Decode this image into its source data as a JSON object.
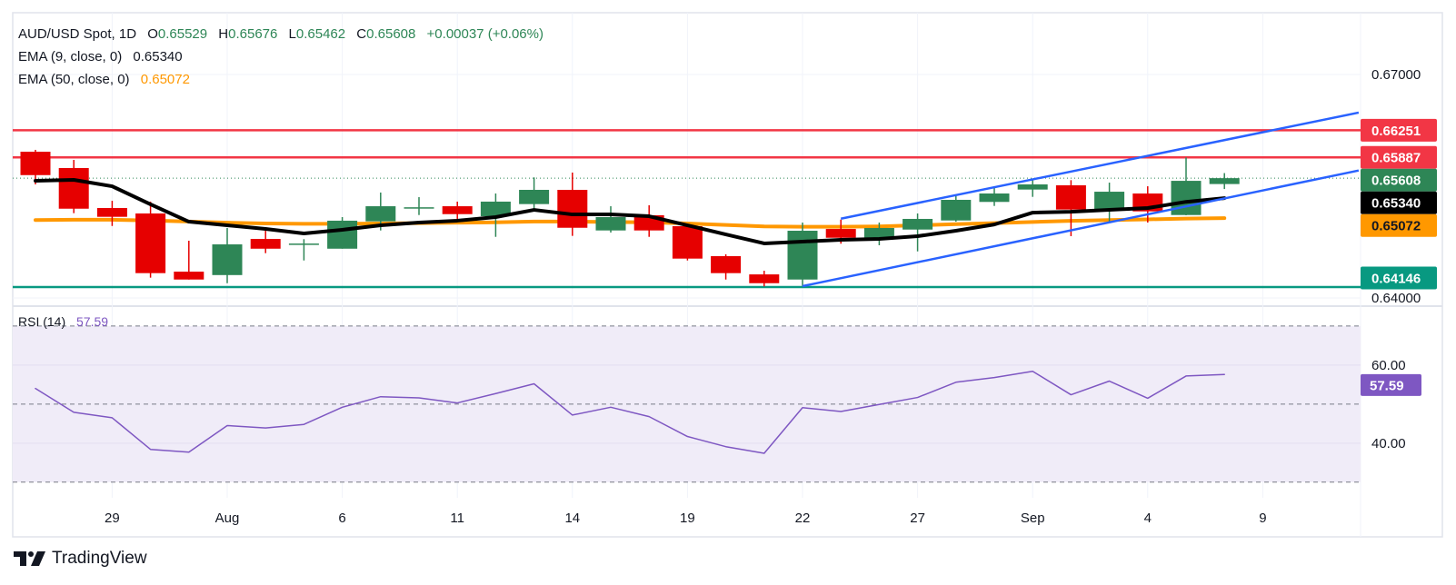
{
  "header": {
    "symbol": "AUD/USD Spot, 1D",
    "open_label": "O",
    "open": "0.65529",
    "high_label": "H",
    "high": "0.65676",
    "low_label": "L",
    "low": "0.65462",
    "close_label": "C",
    "close": "0.65608",
    "change": "+0.00037 (+0.06%)",
    "ema9_label": "EMA (9, close, 0)",
    "ema9_value": "0.65340",
    "ema50_label": "EMA (50, close, 0)",
    "ema50_value": "0.65072",
    "rsi_label": "RSI (14)",
    "rsi_value": "57.59"
  },
  "branding": {
    "name": "TradingView"
  },
  "colors": {
    "up": "#2e8656",
    "down": "#e60000",
    "ema9": "#000000",
    "ema50": "#ff9800",
    "resistance": "#f23645",
    "support": "#089981",
    "channel": "#2962ff",
    "rsi": "#7e57c2",
    "rsi_band": "#f0ecf8",
    "grid": "#f0f3fa"
  },
  "chart_data": {
    "type": "candlestick",
    "x_unit": "bar index",
    "x_ticks": [
      {
        "label": "29",
        "bar": 2
      },
      {
        "label": "Aug",
        "bar": 5
      },
      {
        "label": "6",
        "bar": 8
      },
      {
        "label": "11",
        "bar": 11
      },
      {
        "label": "14",
        "bar": 14
      },
      {
        "label": "19",
        "bar": 17
      },
      {
        "label": "22",
        "bar": 20
      },
      {
        "label": "27",
        "bar": 23
      },
      {
        "label": "Sep",
        "bar": 26
      },
      {
        "label": "4",
        "bar": 29
      },
      {
        "label": "9",
        "bar": 32
      }
    ],
    "price_ticks": [
      "0.67000",
      "0.64000"
    ],
    "price_range": [
      0.6389,
      0.67829
    ],
    "candles_ohlc": [
      [
        0.65963,
        0.65988,
        0.65524,
        0.65649
      ],
      [
        0.65744,
        0.65853,
        0.65138,
        0.65198
      ],
      [
        0.65207,
        0.65304,
        0.64966,
        0.65089
      ],
      [
        0.65134,
        0.65293,
        0.64272,
        0.64333
      ],
      [
        0.64353,
        0.64768,
        0.64247,
        0.64247
      ],
      [
        0.64307,
        0.64939,
        0.64198,
        0.64719
      ],
      [
        0.64792,
        0.64902,
        0.64601,
        0.64661
      ],
      [
        0.64725,
        0.64789,
        0.64503,
        0.6473
      ],
      [
        0.64661,
        0.65085,
        0.64661,
        0.65037
      ],
      [
        0.65028,
        0.65415,
        0.64906,
        0.65231
      ],
      [
        0.6521,
        0.65353,
        0.65113,
        0.65217
      ],
      [
        0.65231,
        0.65293,
        0.65021,
        0.65125
      ],
      [
        0.65097,
        0.65402,
        0.6482,
        0.65293
      ],
      [
        0.6526,
        0.65618,
        0.65174,
        0.65451
      ],
      [
        0.65451,
        0.65683,
        0.64833,
        0.64942
      ],
      [
        0.64906,
        0.65231,
        0.64878,
        0.65085
      ],
      [
        0.6511,
        0.65244,
        0.6482,
        0.64906
      ],
      [
        0.64963,
        0.64968,
        0.64503,
        0.64528
      ],
      [
        0.64561,
        0.64585,
        0.64247,
        0.64333
      ],
      [
        0.64316,
        0.64365,
        0.64155,
        0.64198
      ],
      [
        0.64247,
        0.65012,
        0.64161,
        0.64902
      ],
      [
        0.64926,
        0.65052,
        0.64728,
        0.64808
      ],
      [
        0.64796,
        0.65012,
        0.64707,
        0.64939
      ],
      [
        0.64918,
        0.65134,
        0.64625,
        0.65061
      ],
      [
        0.6504,
        0.65366,
        0.65024,
        0.65317
      ],
      [
        0.65289,
        0.65488,
        0.65235,
        0.65402
      ],
      [
        0.65455,
        0.65601,
        0.65357,
        0.65524
      ],
      [
        0.65512,
        0.65581,
        0.64829,
        0.65187
      ],
      [
        0.65194,
        0.65548,
        0.65024,
        0.65426
      ],
      [
        0.65402,
        0.65499,
        0.65012,
        0.65162
      ],
      [
        0.65113,
        0.65886,
        0.6511,
        0.65572
      ],
      [
        0.65529,
        0.65676,
        0.65462,
        0.65608
      ]
    ],
    "ema9": [
      0.65573,
      0.65585,
      0.65499,
      0.65256,
      0.65024,
      0.64975,
      0.64926,
      0.64866,
      0.64915,
      0.64975,
      0.65012,
      0.65037,
      0.65085,
      0.65182,
      0.65121,
      0.65121,
      0.65097,
      0.64975,
      0.64853,
      0.64732,
      0.64756,
      0.6478,
      0.64792,
      0.64829,
      0.64902,
      0.64986,
      0.65145,
      0.65157,
      0.65182,
      0.65207,
      0.6529,
      0.6534
    ],
    "ema50": [
      0.65045,
      0.6505,
      0.6505,
      0.6504,
      0.65025,
      0.6501,
      0.65,
      0.64995,
      0.64995,
      0.65,
      0.65005,
      0.6501,
      0.65015,
      0.65025,
      0.65025,
      0.6502,
      0.65015,
      0.65,
      0.6498,
      0.6496,
      0.64955,
      0.64955,
      0.6496,
      0.64975,
      0.6499,
      0.65005,
      0.6502,
      0.65035,
      0.65045,
      0.65055,
      0.65065,
      0.65072
    ],
    "horizontal_lines": [
      {
        "value": 0.66251,
        "label": "0.66251",
        "kind": "resistance"
      },
      {
        "value": 0.65887,
        "label": "0.65887",
        "kind": "resistance"
      },
      {
        "value": 0.64146,
        "label": "0.64146",
        "kind": "support"
      }
    ],
    "last_price_line": {
      "value": 0.65608,
      "style": "dotted"
    },
    "channel": [
      {
        "start": [
          21.0,
          0.65064
        ],
        "end": [
          34.5,
          0.66488
        ]
      },
      {
        "start": [
          20.0,
          0.64158
        ],
        "end": [
          34.5,
          0.65711
        ]
      }
    ],
    "price_labels": [
      {
        "value": 0.66251,
        "label": "0.66251",
        "kind": "resistance"
      },
      {
        "value": 0.65887,
        "label": "0.65887",
        "kind": "resistance"
      },
      {
        "value": 0.65608,
        "label": "0.65608",
        "kind": "up"
      },
      {
        "value": 0.6534,
        "label": "0.65340",
        "kind": "ema9"
      },
      {
        "value": 0.65072,
        "label": "0.65072",
        "kind": "ema50"
      },
      {
        "value": 0.64146,
        "label": "0.64146",
        "kind": "support"
      }
    ],
    "rsi": {
      "period": 14,
      "values": [
        54.0,
        47.9,
        46.5,
        38.4,
        37.7,
        44.5,
        43.9,
        44.8,
        49.2,
        51.9,
        51.6,
        50.3,
        52.7,
        55.2,
        47.2,
        49.2,
        46.8,
        41.7,
        39.1,
        37.4,
        49.1,
        48.1,
        49.9,
        51.7,
        55.6,
        56.8,
        58.4,
        52.4,
        55.9,
        51.5,
        57.2,
        57.59
      ],
      "levels": [
        70,
        50,
        30
      ],
      "ticks": [
        "60.00",
        "40.00"
      ],
      "range": [
        26.0,
        75.1
      ],
      "last_label": "57.59"
    }
  }
}
